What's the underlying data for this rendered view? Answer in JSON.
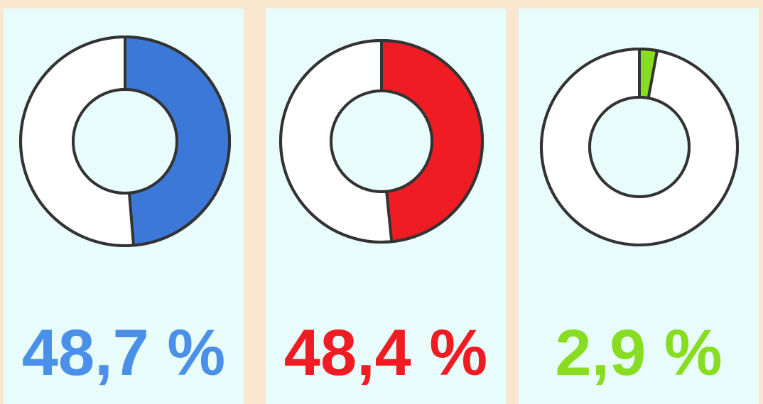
{
  "chart_data": [
    {
      "type": "pie",
      "values": [
        48.7
      ],
      "value_labels": [
        "48,7 %"
      ],
      "color": "#3b78d8",
      "label_color": "#4a8fe8"
    },
    {
      "type": "pie",
      "values": [
        48.4
      ],
      "value_labels": [
        "48,4 %"
      ],
      "color": "#f01c24",
      "label_color": "#f01c24"
    },
    {
      "type": "pie",
      "values": [
        2.9
      ],
      "value_labels": [
        "2,9 %"
      ],
      "color": "#88dd22",
      "label_color": "#88dd22"
    }
  ]
}
